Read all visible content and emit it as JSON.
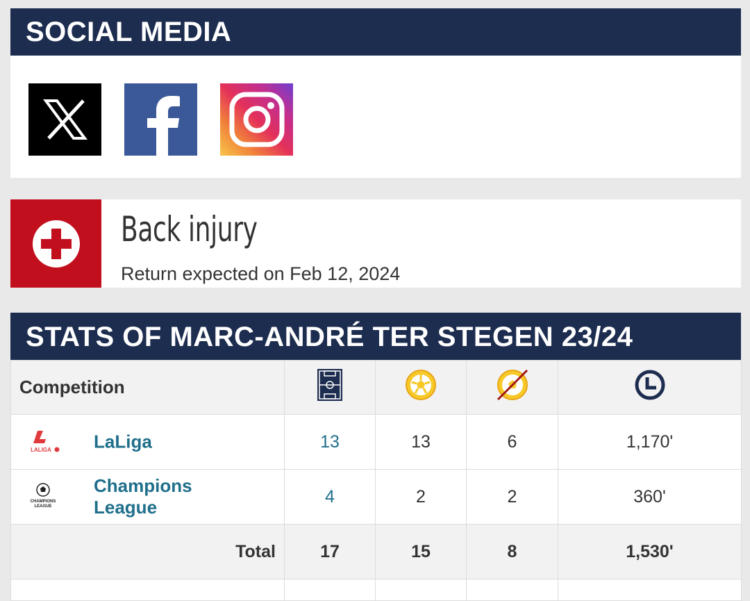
{
  "social": {
    "title": "SOCIAL MEDIA",
    "icons": [
      "x-icon",
      "facebook-icon",
      "instagram-icon"
    ]
  },
  "injury": {
    "title": "Back injury",
    "subtitle": "Return expected on Feb 12, 2024",
    "icon": "medical-cross-icon",
    "color": "#c20f1e"
  },
  "stats": {
    "title": "STATS OF MARC-ANDRÉ TER STEGEN 23/24",
    "header": {
      "competition": "Competition",
      "icons": [
        "pitch-icon",
        "ball-icon",
        "clean-sheet-icon",
        "clock-icon"
      ]
    },
    "rows": [
      {
        "logo_text": "LALIGA",
        "name": "LaLiga",
        "appearances": "13",
        "goals_conceded": "13",
        "clean_sheets": "6",
        "minutes": "1,170'"
      },
      {
        "logo_text": "CHAMPIONS LEAGUE",
        "name": "Champions League",
        "appearances": "4",
        "goals_conceded": "2",
        "clean_sheets": "2",
        "minutes": "360'"
      }
    ],
    "total": {
      "label": "Total",
      "appearances": "17",
      "goals_conceded": "15",
      "clean_sheets": "8",
      "minutes": "1,530'"
    }
  },
  "colors": {
    "header_bg": "#1d2d4f",
    "link": "#1f6f8b",
    "injury_red": "#c20f1e"
  }
}
